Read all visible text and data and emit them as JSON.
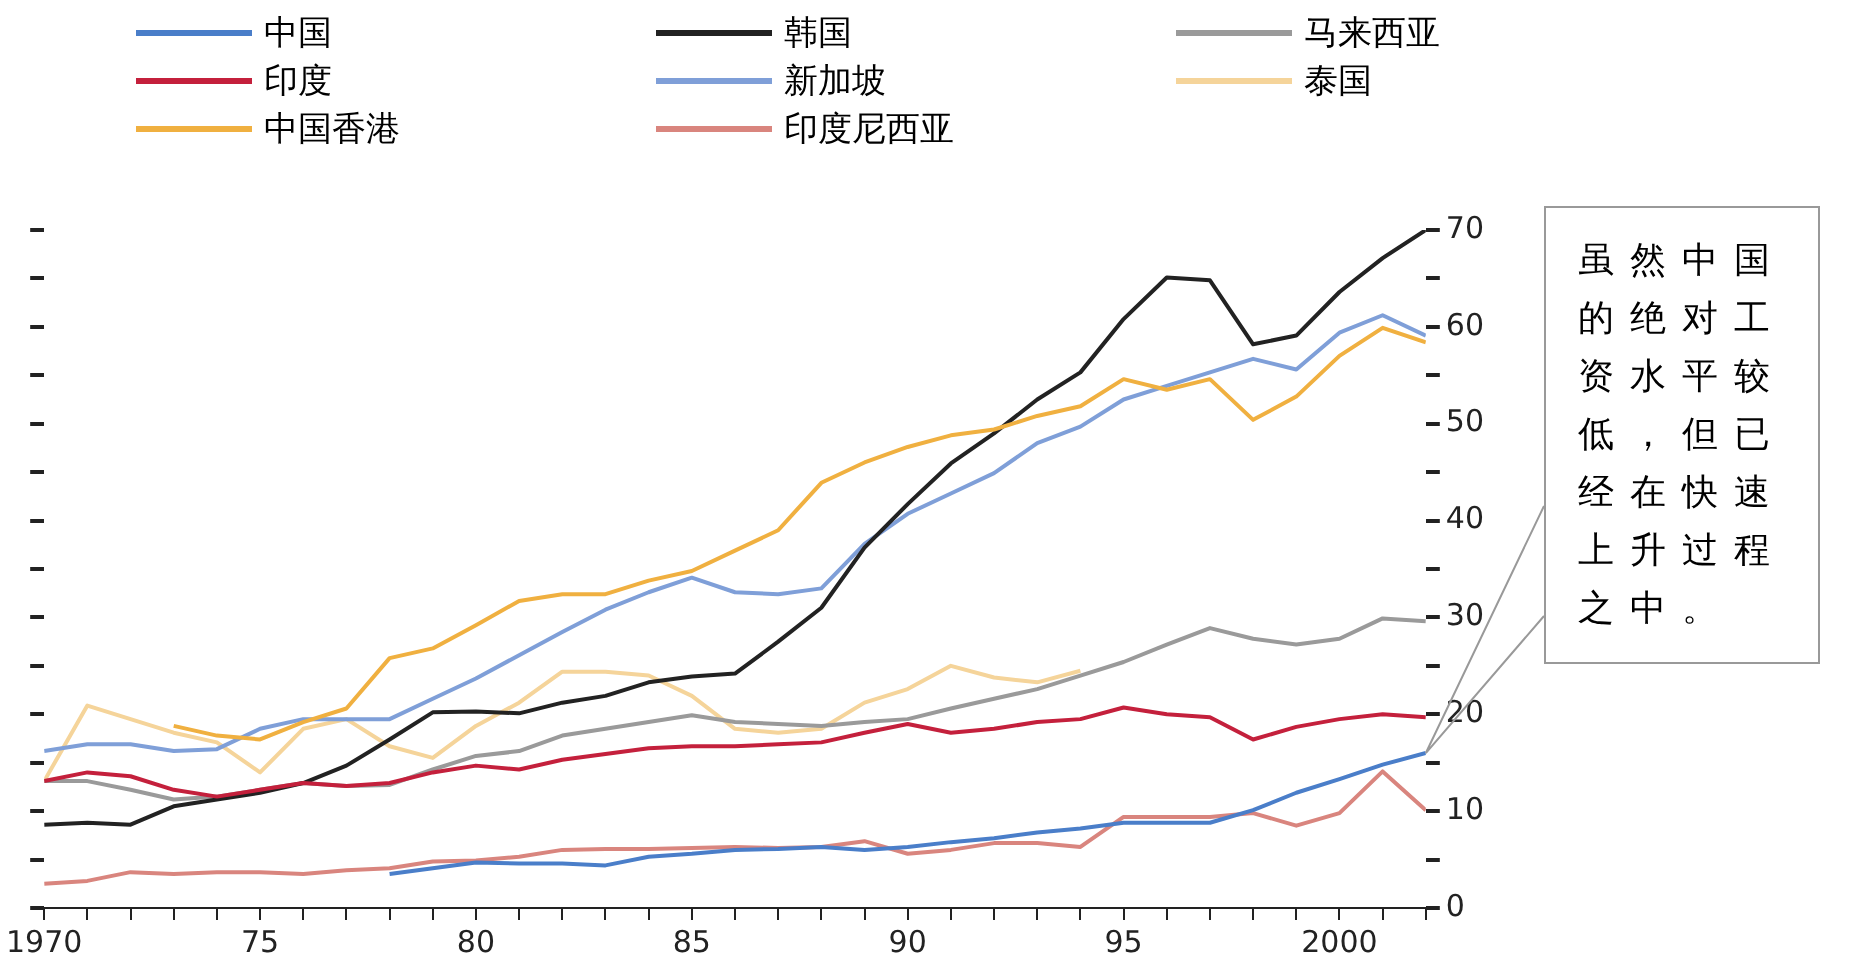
{
  "chart_data": {
    "type": "line",
    "x": [
      1970,
      1971,
      1972,
      1973,
      1974,
      1975,
      1976,
      1977,
      1978,
      1979,
      1980,
      1981,
      1982,
      1983,
      1984,
      1985,
      1986,
      1987,
      1988,
      1989,
      1990,
      1991,
      1992,
      1993,
      1994,
      1995,
      1996,
      1997,
      1998,
      1999,
      2000,
      2001,
      2002
    ],
    "series": [
      {
        "name": "中国",
        "color": "#4a7ec9",
        "values": [
          null,
          null,
          null,
          null,
          null,
          null,
          null,
          null,
          3.5,
          4.1,
          4.7,
          4.6,
          4.6,
          4.4,
          5.3,
          5.6,
          6,
          6.1,
          6.3,
          6,
          6.3,
          6.8,
          7.2,
          7.8,
          8.2,
          8.8,
          8.8,
          8.8,
          10.1,
          11.9,
          13.3,
          14.8,
          16
        ]
      },
      {
        "name": "印度",
        "color": "#c4203c",
        "values": [
          13.1,
          14,
          13.6,
          12.2,
          11.5,
          12.2,
          12.9,
          12.6,
          12.9,
          14,
          14.7,
          14.3,
          15.3,
          15.9,
          16.5,
          16.7,
          16.7,
          16.9,
          17.1,
          18.1,
          19,
          18.1,
          18.5,
          19.2,
          19.5,
          20.7,
          20,
          19.7,
          17.4,
          18.7,
          19.5,
          20,
          19.7
        ]
      },
      {
        "name": "中国香港",
        "color": "#f0b040",
        "values": [
          null,
          null,
          null,
          18.8,
          17.8,
          17.4,
          19.2,
          20.6,
          25.8,
          26.8,
          29.2,
          31.7,
          32.4,
          32.4,
          33.8,
          34.8,
          36.9,
          39,
          43.9,
          46,
          47.6,
          48.8,
          49.4,
          50.8,
          51.8,
          54.6,
          53.5,
          54.6,
          50.4,
          52.8,
          57,
          59.9,
          58.4
        ]
      },
      {
        "name": "韩国",
        "color": "#222222",
        "values": [
          8.6,
          8.8,
          8.6,
          10.5,
          11.2,
          11.9,
          12.9,
          14.7,
          17.4,
          20.2,
          20.3,
          20.1,
          21.2,
          21.9,
          23.3,
          23.9,
          24.2,
          27.5,
          31,
          37.2,
          41.7,
          45.9,
          49,
          52.5,
          55.3,
          60.8,
          65.1,
          64.8,
          58.2,
          59.1,
          63.6,
          67.1,
          70
        ]
      },
      {
        "name": "新加坡",
        "color": "#7f9fd8",
        "values": [
          16.2,
          16.9,
          16.9,
          16.2,
          16.4,
          18.5,
          19.5,
          19.5,
          19.5,
          21.6,
          23.7,
          26.1,
          28.5,
          30.8,
          32.6,
          34.1,
          32.6,
          32.4,
          33,
          37.6,
          40.7,
          42.8,
          44.9,
          48,
          49.7,
          52.5,
          53.9,
          55.3,
          56.7,
          55.6,
          59.4,
          61.2,
          59.1
        ]
      },
      {
        "name": "印度尼西亚",
        "color": "#d9857e",
        "values": [
          2.5,
          2.8,
          3.7,
          3.5,
          3.7,
          3.7,
          3.5,
          3.9,
          4.1,
          4.8,
          4.9,
          5.3,
          6,
          6.1,
          6.1,
          6.2,
          6.3,
          6.2,
          6.3,
          6.9,
          5.6,
          6,
          6.7,
          6.7,
          6.3,
          9.4,
          9.4,
          9.4,
          9.8,
          8.5,
          9.8,
          14.1,
          10.1
        ]
      },
      {
        "name": "马来西亚",
        "color": "#9a9a9a",
        "values": [
          13.1,
          13.1,
          12.2,
          11.2,
          11.5,
          12.2,
          12.9,
          12.6,
          12.7,
          14.3,
          15.7,
          16.2,
          17.8,
          18.5,
          19.2,
          19.9,
          19.2,
          19,
          18.8,
          19.2,
          19.5,
          20.6,
          21.6,
          22.6,
          24,
          25.4,
          27.2,
          28.9,
          27.8,
          27.2,
          27.8,
          29.9,
          29.6
        ]
      },
      {
        "name": "泰国",
        "color": "#f5d49a",
        "values": [
          13.1,
          20.9,
          19.5,
          18.1,
          17.1,
          14,
          18.5,
          19.5,
          16.7,
          15.5,
          18.8,
          21.2,
          24.4,
          24.4,
          24,
          21.9,
          18.5,
          18.1,
          18.5,
          21.2,
          22.6,
          25,
          23.8,
          23.3,
          24.5,
          null,
          null,
          null,
          null,
          null,
          null,
          null,
          null
        ]
      }
    ],
    "xlim": [
      1970,
      2002
    ],
    "xticks": [
      1970,
      {
        "value": 1971,
        "label": null
      },
      {
        "value": 1972,
        "label": null
      },
      {
        "value": 1973,
        "label": null
      },
      {
        "value": 1974,
        "label": null
      },
      {
        "value": 1975,
        "label": "75"
      },
      {
        "value": 1976,
        "label": null
      },
      {
        "value": 1977,
        "label": null
      },
      {
        "value": 1978,
        "label": null
      },
      {
        "value": 1979,
        "label": null
      },
      {
        "value": 1980,
        "label": "80"
      },
      {
        "value": 1981,
        "label": null
      },
      {
        "value": 1982,
        "label": null
      },
      {
        "value": 1983,
        "label": null
      },
      {
        "value": 1984,
        "label": null
      },
      {
        "value": 1985,
        "label": "85"
      },
      {
        "value": 1986,
        "label": null
      },
      {
        "value": 1987,
        "label": null
      },
      {
        "value": 1988,
        "label": null
      },
      {
        "value": 1989,
        "label": null
      },
      {
        "value": 1990,
        "label": "90"
      },
      {
        "value": 1991,
        "label": null
      },
      {
        "value": 1992,
        "label": null
      },
      {
        "value": 1993,
        "label": null
      },
      {
        "value": 1994,
        "label": null
      },
      {
        "value": 1995,
        "label": "95"
      },
      {
        "value": 1996,
        "label": null
      },
      {
        "value": 1997,
        "label": null
      },
      {
        "value": 1998,
        "label": null
      },
      {
        "value": 1999,
        "label": null
      },
      {
        "value": 2000,
        "label": "2000"
      },
      {
        "value": 2001,
        "label": null
      },
      {
        "value": 2002,
        "label": null
      }
    ],
    "ylim": [
      0,
      70
    ],
    "yticks": [
      0,
      {
        "value": 5,
        "label": null
      },
      10,
      {
        "value": 15,
        "label": null
      },
      20,
      {
        "value": 25,
        "label": null
      },
      30,
      {
        "value": 35,
        "label": null
      },
      40,
      {
        "value": 45,
        "label": null
      },
      50,
      {
        "value": 55,
        "label": null
      },
      60,
      {
        "value": 65,
        "label": null
      },
      70
    ],
    "annotations": [
      {
        "text": "虽然中国的绝对工资水平较低，但已经在快速上升过程之中。",
        "x": 2002,
        "y": 16
      }
    ],
    "legend": "top",
    "grid": false,
    "marker": "none",
    "line_style": "solid"
  }
}
